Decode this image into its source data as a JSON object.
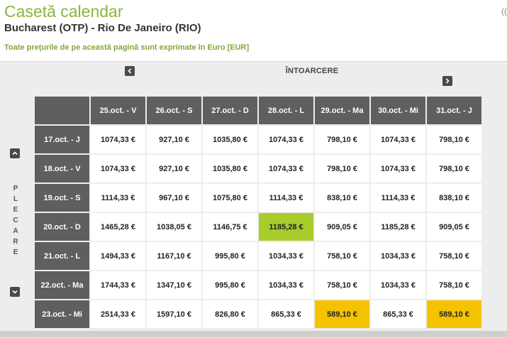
{
  "header": {
    "title": "Casetă calendar",
    "route": "Bucharest (OTP) - Rio De Janeiro (RIO)",
    "currency_note": "Toate preţurile de pe această pagină sunt exprimate în Euro [EUR]",
    "edge_glyph": "(("
  },
  "calendar": {
    "return_label": "ÎNTOARCERE",
    "departure_label_letters": [
      "P",
      "L",
      "E",
      "C",
      "A",
      "R",
      "E"
    ],
    "return_dates": [
      "25.oct. - V",
      "26.oct. - S",
      "27.oct. - D",
      "28.oct. - L",
      "29.oct. - Ma",
      "30.oct. - Mi",
      "31.oct. - J"
    ],
    "rows": [
      {
        "departure": "17.oct. - J",
        "prices": [
          "1074,33 €",
          "927,10 €",
          "1035,80 €",
          "1074,33 €",
          "798,10 €",
          "1074,33 €",
          "798,10 €"
        ]
      },
      {
        "departure": "18.oct. - V",
        "prices": [
          "1074,33 €",
          "927,10 €",
          "1035,80 €",
          "1074,33 €",
          "798,10 €",
          "1074,33 €",
          "798,10 €"
        ]
      },
      {
        "departure": "19.oct. - S",
        "prices": [
          "1114,33 €",
          "967,10 €",
          "1075,80 €",
          "1114,33 €",
          "838,10 €",
          "1114,33 €",
          "838,10 €"
        ]
      },
      {
        "departure": "20.oct. - D",
        "prices": [
          "1465,28 €",
          "1038,05 €",
          "1146,75 €",
          "1185,28 €",
          "909,05 €",
          "1185,28 €",
          "909,05 €"
        ]
      },
      {
        "departure": "21.oct. - L",
        "prices": [
          "1494,33 €",
          "1167,10 €",
          "995,80 €",
          "1034,33 €",
          "758,10 €",
          "1034,33 €",
          "758,10 €"
        ]
      },
      {
        "departure": "22.oct. - Ma",
        "prices": [
          "1744,33 €",
          "1347,10 €",
          "995,80 €",
          "1034,33 €",
          "758,10 €",
          "1034,33 €",
          "758,10 €"
        ]
      },
      {
        "departure": "23.oct. - Mi",
        "prices": [
          "2514,33 €",
          "1597,10 €",
          "826,80 €",
          "865,33 €",
          "589,10 €",
          "865,33 €",
          "589,10 €"
        ]
      }
    ],
    "selected_cell": {
      "row": 3,
      "col": 3
    },
    "cheapest_cells": [
      {
        "row": 6,
        "col": 4
      },
      {
        "row": 6,
        "col": 6
      }
    ]
  },
  "icons": {
    "prev_return": "chevron-left-icon",
    "next_return": "chevron-right-icon",
    "prev_departure": "chevron-up-icon",
    "next_departure": "chevron-down-icon"
  },
  "colors": {
    "title": "#8cb43c",
    "selected": "#a8cc2c",
    "cheapest": "#f5c200",
    "header_cell": "#5f5f5f"
  }
}
